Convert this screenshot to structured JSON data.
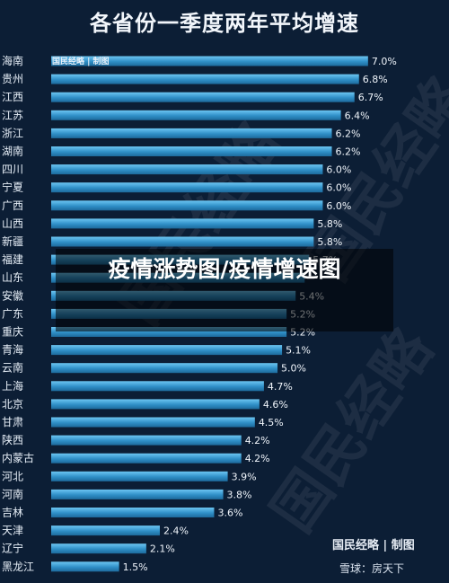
{
  "chart_data": {
    "type": "bar",
    "orientation": "horizontal",
    "title": "各省份一季度两年平均增速",
    "categories": [
      "海南",
      "贵州",
      "江西",
      "江苏",
      "浙江",
      "湖南",
      "四川",
      "宁夏",
      "广西",
      "山西",
      "新疆",
      "福建",
      "山东",
      "安徽",
      "广东",
      "重庆",
      "青海",
      "云南",
      "上海",
      "北京",
      "甘肃",
      "陕西",
      "内蒙古",
      "河北",
      "河南",
      "吉林",
      "天津",
      "辽宁",
      "黑龙江"
    ],
    "values": [
      7.0,
      6.8,
      6.7,
      6.4,
      6.2,
      6.2,
      6.0,
      6.0,
      6.0,
      5.8,
      5.8,
      5.7,
      5.6,
      5.4,
      5.2,
      5.2,
      5.1,
      5.0,
      4.7,
      4.6,
      4.5,
      4.2,
      4.2,
      3.9,
      3.8,
      3.6,
      2.4,
      2.1,
      1.5
    ],
    "value_labels": [
      "7.0%",
      "6.8%",
      "6.7%",
      "6.4%",
      "6.2%",
      "6.2%",
      "6.0%",
      "6.0%",
      "6.0%",
      "5.8%",
      "5.8%",
      "5.7%",
      "",
      "5.4%",
      "5.2%",
      "5.2%",
      "5.1%",
      "5.0%",
      "4.7%",
      "4.6%",
      "4.5%",
      "4.2%",
      "4.2%",
      "3.9%",
      "3.8%",
      "3.6%",
      "2.4%",
      "2.1%",
      "1.5%"
    ],
    "xlim": [
      0,
      7.4
    ],
    "grid": false,
    "legend": "none",
    "bar_color": "#2f8fc7"
  },
  "source_label": "国民经略 | 制图",
  "overlay_text": "疫情涨势图/疫情增速图",
  "logo_text": "国民经略 | 制图",
  "footer_text": "雪球：房天下",
  "watermark_text": "国民经略",
  "colors": {
    "background": "#0c1e35",
    "bar": "#2f8fc7",
    "bar_highlight": "#6cc6f2"
  }
}
